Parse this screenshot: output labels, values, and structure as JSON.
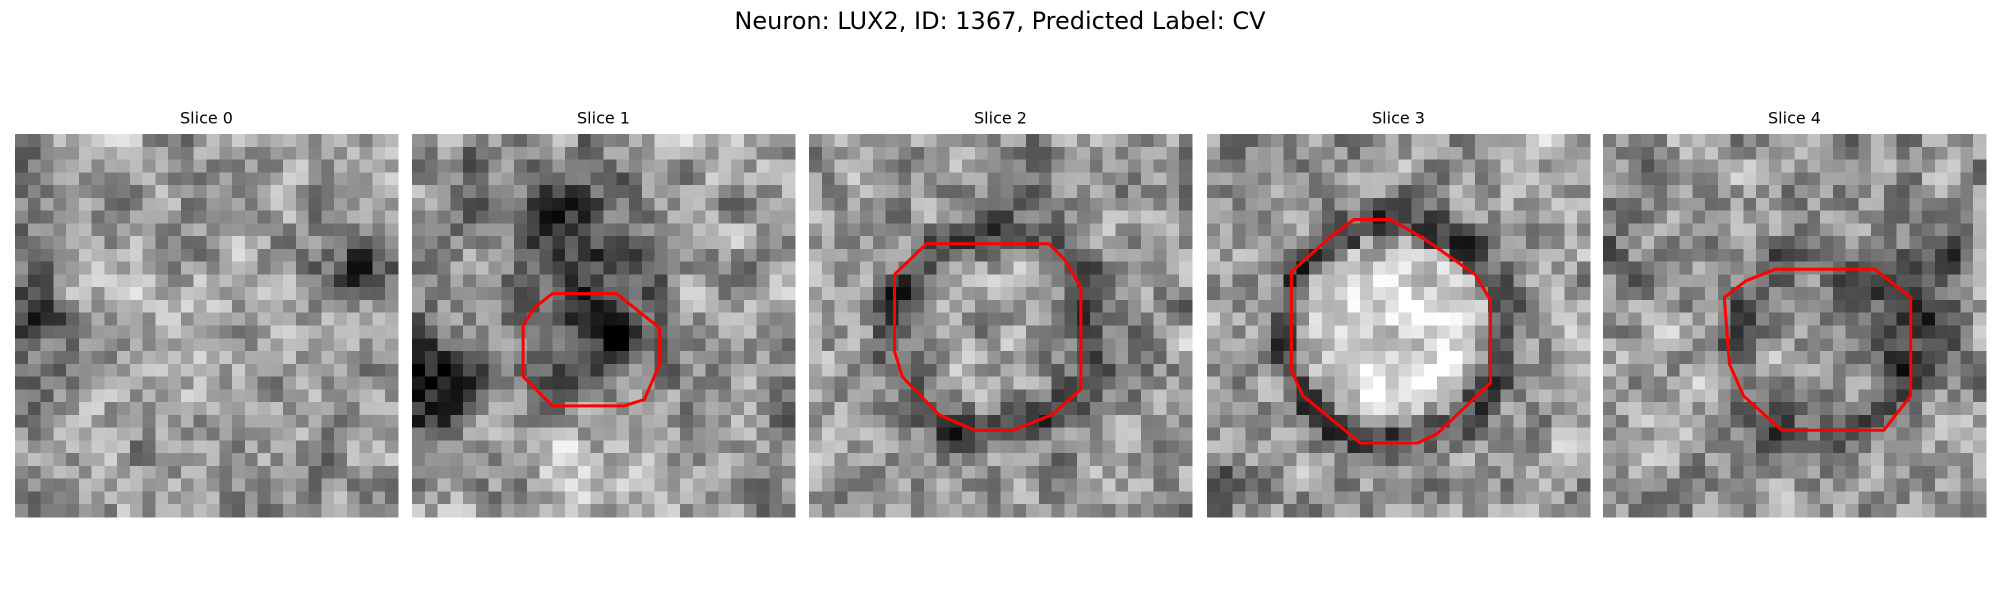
{
  "header": {
    "title": "Neuron: LUX2, ID: 1367, Predicted Label: CV"
  },
  "panels": [
    {
      "title": "Slice 0"
    },
    {
      "title": "Slice 1"
    },
    {
      "title": "Slice 2"
    },
    {
      "title": "Slice 3"
    },
    {
      "title": "Slice 4"
    }
  ]
}
